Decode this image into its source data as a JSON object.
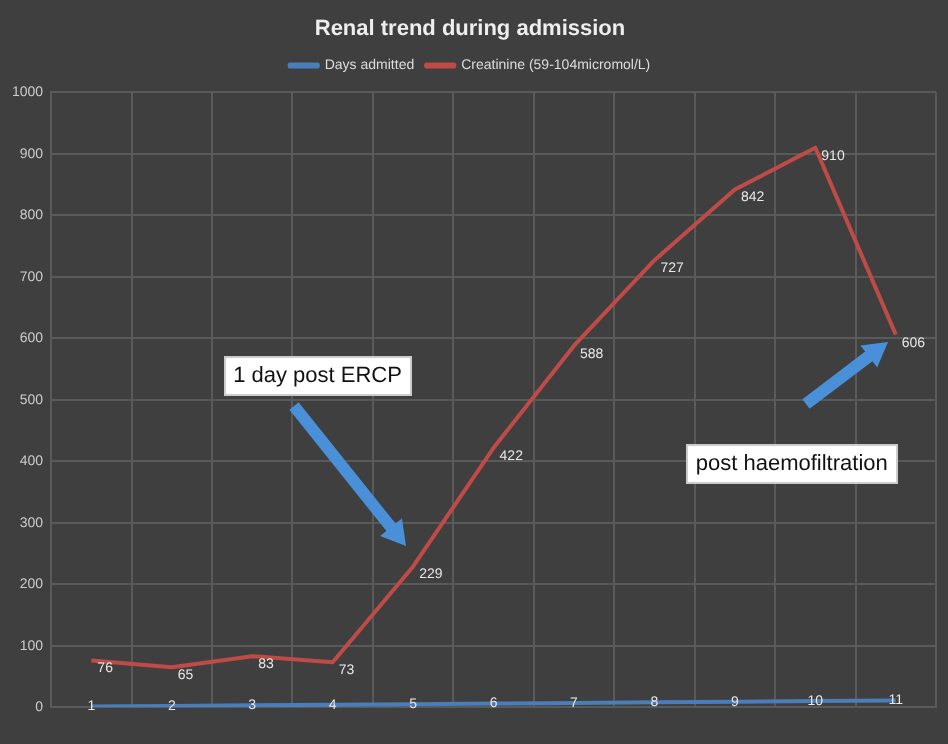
{
  "chart_data": {
    "type": "line",
    "title": "Renal trend during admission",
    "categories": [
      null,
      null,
      null,
      null,
      null,
      null,
      null,
      null,
      null,
      null,
      null
    ],
    "series": [
      {
        "name": "Days admitted",
        "color": "#4a7ebb",
        "values": [
          1,
          2,
          3,
          4,
          5,
          6,
          7,
          8,
          9,
          10,
          11
        ]
      },
      {
        "name": "Creatinine (59-104micromol/L)",
        "color": "#be4b48",
        "values": [
          76,
          65,
          83,
          73,
          229,
          422,
          588,
          727,
          842,
          910,
          606
        ]
      }
    ],
    "ylim": [
      0,
      1000
    ],
    "yticks": [
      0,
      100,
      200,
      300,
      400,
      500,
      600,
      700,
      800,
      900,
      1000
    ],
    "grid": true,
    "legend": "top",
    "data_labels": true,
    "marker": "none",
    "line_style": "solid",
    "annotations": [
      "1 day post ERCP",
      "post haemofiltration"
    ]
  }
}
